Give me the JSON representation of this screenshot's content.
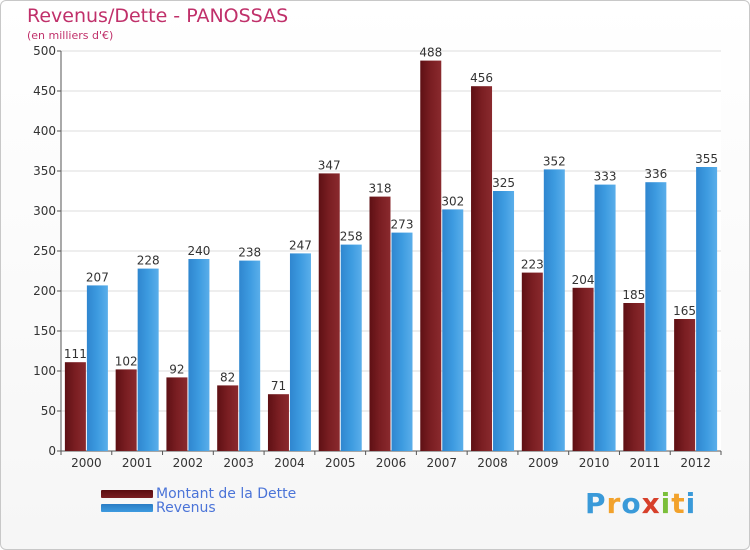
{
  "title": "Revenus/Dette - PANOSSAS",
  "subtitle": "(en milliers d'€)",
  "legend": {
    "dette_label": "Montant de la Dette",
    "revenus_label": "Revenus"
  },
  "logo": {
    "text": "Proxiti",
    "letters": [
      {
        "ch": "P",
        "color": "#3a9ad9"
      },
      {
        "ch": "r",
        "color": "#f2a22c"
      },
      {
        "ch": "o",
        "color": "#3a9ad9"
      },
      {
        "ch": "x",
        "color": "#d7402b"
      },
      {
        "ch": "i",
        "color": "#7bbf3a"
      },
      {
        "ch": "t",
        "color": "#f2a22c"
      },
      {
        "ch": "i",
        "color": "#3a9ad9"
      }
    ]
  },
  "colors": {
    "dette": "#7a1e22",
    "revenus": "#3d9be0",
    "title": "#c0306a",
    "legend_text": "#4b74d8"
  },
  "chart_data": {
    "type": "bar",
    "title": "Revenus/Dette - PANOSSAS",
    "subtitle": "(en milliers d'€)",
    "xlabel": "",
    "ylabel": "",
    "ylim": [
      0,
      500
    ],
    "yticks": [
      0,
      50,
      100,
      150,
      200,
      250,
      300,
      350,
      400,
      450,
      500
    ],
    "grid": true,
    "legend_position": "bottom-left",
    "categories": [
      "2000",
      "2001",
      "2002",
      "2003",
      "2004",
      "2005",
      "2006",
      "2007",
      "2008",
      "2009",
      "2010",
      "2011",
      "2012"
    ],
    "series": [
      {
        "name": "Montant de la Dette",
        "values": [
          111,
          102,
          92,
          82,
          71,
          347,
          318,
          488,
          456,
          223,
          204,
          185,
          165
        ]
      },
      {
        "name": "Revenus",
        "values": [
          207,
          228,
          240,
          238,
          247,
          258,
          273,
          302,
          325,
          352,
          333,
          336,
          355
        ]
      }
    ]
  }
}
